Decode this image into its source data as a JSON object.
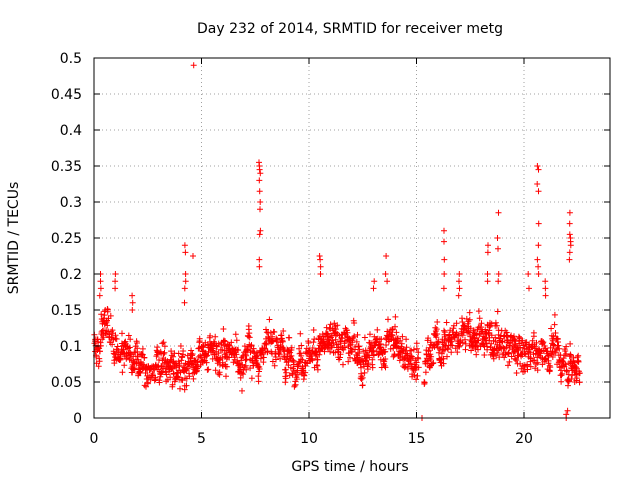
{
  "chart_data": {
    "type": "scatter",
    "title": "Day 232 of 2014, SRMTID for receiver metg",
    "xlabel": "GPS time / hours",
    "ylabel": "SRMTID / TECUs",
    "xlim": [
      0,
      24
    ],
    "ylim": [
      0,
      0.5
    ],
    "x_ticks": [
      0,
      5,
      10,
      15,
      20
    ],
    "x_tick_labels": [
      "0",
      "5",
      "10",
      "15",
      "20"
    ],
    "y_ticks": [
      0,
      0.05,
      0.1,
      0.15,
      0.2,
      0.25,
      0.3,
      0.35,
      0.4,
      0.45,
      0.5
    ],
    "y_tick_labels": [
      "0",
      "0.05",
      "0.1",
      "0.15",
      "0.2",
      "0.25",
      "0.3",
      "0.35",
      "0.4",
      "0.45",
      "0.5"
    ],
    "grid": true,
    "marker": "+",
    "color": "#ff0000",
    "generator": {
      "t_start": 0.0,
      "t_end": 22.6,
      "step_hours": 0.02,
      "data_gap": [
        15.1,
        15.35
      ],
      "baseline_segments": [
        {
          "x": 0.0,
          "y": 0.1
        },
        {
          "x": 0.5,
          "y": 0.12
        },
        {
          "x": 1.5,
          "y": 0.09
        },
        {
          "x": 2.5,
          "y": 0.07
        },
        {
          "x": 4.0,
          "y": 0.07
        },
        {
          "x": 5.0,
          "y": 0.08
        },
        {
          "x": 6.0,
          "y": 0.09
        },
        {
          "x": 7.0,
          "y": 0.08
        },
        {
          "x": 8.5,
          "y": 0.1
        },
        {
          "x": 9.5,
          "y": 0.08
        },
        {
          "x": 10.5,
          "y": 0.1
        },
        {
          "x": 11.5,
          "y": 0.11
        },
        {
          "x": 12.5,
          "y": 0.09
        },
        {
          "x": 13.5,
          "y": 0.1
        },
        {
          "x": 14.5,
          "y": 0.09
        },
        {
          "x": 15.5,
          "y": 0.08
        },
        {
          "x": 16.5,
          "y": 0.11
        },
        {
          "x": 17.5,
          "y": 0.12
        },
        {
          "x": 18.5,
          "y": 0.11
        },
        {
          "x": 19.5,
          "y": 0.09
        },
        {
          "x": 20.5,
          "y": 0.1
        },
        {
          "x": 21.5,
          "y": 0.08
        },
        {
          "x": 22.6,
          "y": 0.07
        }
      ],
      "spread": 0.035,
      "spikes": [
        {
          "x": 0.3,
          "values": [
            0.2,
            0.19,
            0.18,
            0.17
          ]
        },
        {
          "x": 1.0,
          "values": [
            0.2,
            0.19,
            0.18
          ]
        },
        {
          "x": 1.8,
          "values": [
            0.17,
            0.16,
            0.15
          ]
        },
        {
          "x": 4.25,
          "values": [
            0.24,
            0.23,
            0.2,
            0.19,
            0.18,
            0.16
          ]
        },
        {
          "x": 4.6,
          "values": [
            0.49,
            0.225
          ]
        },
        {
          "x": 7.7,
          "values": [
            0.355,
            0.35,
            0.345,
            0.34,
            0.33,
            0.315,
            0.3,
            0.29,
            0.26,
            0.255,
            0.22,
            0.21
          ]
        },
        {
          "x": 10.5,
          "values": [
            0.225,
            0.22,
            0.21,
            0.2
          ]
        },
        {
          "x": 13.0,
          "values": [
            0.19,
            0.18
          ]
        },
        {
          "x": 13.6,
          "values": [
            0.225,
            0.2,
            0.19
          ]
        },
        {
          "x": 16.3,
          "values": [
            0.26,
            0.245,
            0.22,
            0.2,
            0.18
          ]
        },
        {
          "x": 17.0,
          "values": [
            0.2,
            0.19,
            0.18,
            0.17
          ]
        },
        {
          "x": 18.3,
          "values": [
            0.24,
            0.23,
            0.2,
            0.19
          ]
        },
        {
          "x": 18.8,
          "values": [
            0.285,
            0.25,
            0.235,
            0.2,
            0.19
          ]
        },
        {
          "x": 20.2,
          "values": [
            0.2,
            0.18
          ]
        },
        {
          "x": 20.65,
          "values": [
            0.35,
            0.345,
            0.325,
            0.315,
            0.27,
            0.24,
            0.22,
            0.21,
            0.2
          ]
        },
        {
          "x": 21.0,
          "values": [
            0.19,
            0.18,
            0.17
          ]
        },
        {
          "x": 22.15,
          "values": [
            0.285,
            0.27,
            0.255,
            0.25,
            0.245,
            0.24,
            0.23,
            0.22
          ]
        },
        {
          "x": 22.0,
          "values": [
            0.01,
            0.005,
            0.0
          ]
        },
        {
          "x": 15.25,
          "values": [
            0.0
          ]
        }
      ]
    }
  }
}
